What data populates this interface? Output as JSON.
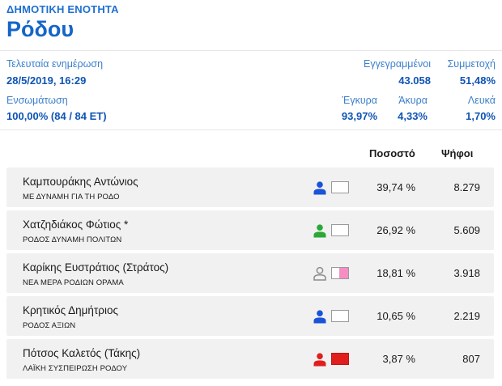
{
  "header": {
    "municipality_label": "ΔΗΜΟΤΙΚΗ ΕΝΟΤΗΤΑ",
    "municipality_name": "Ρόδου"
  },
  "stats": {
    "last_update_label": "Τελευταία ενημέρωση",
    "last_update_value": "28/5/2019, 16:29",
    "registered_label": "Εγγεγραμμένοι",
    "registered_value": "43.058",
    "turnout_label": "Συμμετοχή",
    "turnout_value": "51,48%",
    "integration_label": "Ενσωμάτωση",
    "integration_value": "100,00% (84 / 84 ΕΤ)",
    "valid_label": "Έγκυρα",
    "valid_value": "93,97%",
    "invalid_label": "Άκυρα",
    "invalid_value": "4,33%",
    "blank_label": "Λευκά",
    "blank_value": "1,70%"
  },
  "table": {
    "col_percent": "Ποσοστό",
    "col_votes": "Ψήφοι",
    "rows": [
      {
        "name": "Καμπουράκης Αντώνιος",
        "party": "ΜΕ ΔΥΝΑΜΗ ΓΙΑ ΤΗ ΡΟΔΟ",
        "percent": "39,74 %",
        "votes": "8.279",
        "icon_color": "#1a52d8",
        "icon_outline": false,
        "box_color": "#ffffff"
      },
      {
        "name": "Χατζηδιάκος Φώτιος *",
        "party": "ΡΟΔΟΣ ΔΥΝΑΜΗ ΠΟΛΙΤΩΝ",
        "percent": "26,92 %",
        "votes": "5.609",
        "icon_color": "#2aa838",
        "icon_outline": false,
        "box_color": "#ffffff"
      },
      {
        "name": "Καρίκης Ευστράτιος (Στράτος)",
        "party": "ΝΕΑ ΜΕΡΑ ΡΟΔΙΩΝ ΟΡΑΜΑ",
        "percent": "18,81 %",
        "votes": "3.918",
        "icon_color": "#8a8a8a",
        "icon_outline": true,
        "box_color": "#f58ec2"
      },
      {
        "name": "Κρητικός Δημήτριος",
        "party": "ΡΟΔΟΣ ΑΞΙΩΝ",
        "percent": "10,65 %",
        "votes": "2.219",
        "icon_color": "#1a52d8",
        "icon_outline": false,
        "box_color": "#ffffff"
      },
      {
        "name": "Πότσος Καλετός (Τάκης)",
        "party": "ΛΑΪΚΗ ΣΥΣΠΕΙΡΩΣΗ ΡΟΔΟΥ",
        "percent": "3,87 %",
        "votes": "807",
        "icon_color": "#e01e1e",
        "icon_outline": false,
        "box_color": "#e01e1e"
      }
    ]
  }
}
